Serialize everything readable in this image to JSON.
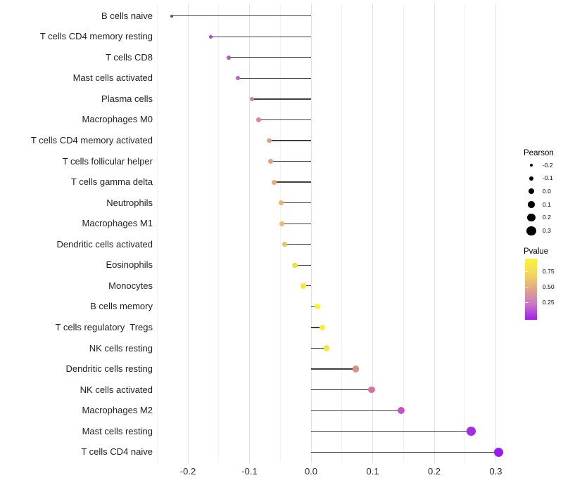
{
  "chart_data": {
    "type": "scatter",
    "subtype": "lollipop",
    "orientation": "horizontal",
    "title": "",
    "xlabel": "",
    "ylabel": "",
    "xlim": [
      -0.252,
      0.332
    ],
    "grid": "vertical major and minor, no axis lines, white background",
    "legend_position": "right",
    "categories": [
      "B cells naive",
      "T cells CD4 memory resting",
      "T cells CD8",
      "Mast cells activated",
      "Plasma cells",
      "Macrophages M0",
      "T cells CD4 memory activated",
      "T cells follicular helper",
      "T cells gamma delta",
      "Neutrophils",
      "Macrophages M1",
      "Dendritic cells activated",
      "Eosinophils",
      "Monocytes",
      "B cells memory",
      "T cells regulatory  Tregs",
      "NK cells resting",
      "Dendritic cells resting",
      "NK cells activated",
      "Macrophages M2",
      "Mast cells resting",
      "T cells CD4 naive"
    ],
    "series": [
      {
        "name": "Pearson correlation",
        "values": [
          -0.226,
          -0.163,
          -0.134,
          -0.119,
          -0.096,
          -0.085,
          -0.068,
          -0.066,
          -0.06,
          -0.049,
          -0.047,
          -0.043,
          -0.026,
          -0.013,
          0.01,
          0.018,
          0.025,
          0.073,
          0.098,
          0.146,
          0.26,
          0.305
        ]
      }
    ],
    "point_colors": [
      "#8A2BBE",
      "#A845CE",
      "#B55ACB",
      "#BF62C8",
      "#D87C9F",
      "#DC8A90",
      "#E39B80",
      "#E5A17A",
      "#E9AB70",
      "#ECB468",
      "#EDB765",
      "#F0C05C",
      "#F5DC41",
      "#F8E83C",
      "#FBF23A",
      "#FAEF3A",
      "#F7E73D",
      "#DE8D86",
      "#D3759E",
      "#C452CE",
      "#A62BE8",
      "#9B1CF0"
    ],
    "x_tick_labels": [
      "-0.2",
      "-0.1",
      "0.0",
      "0.1",
      "0.2",
      "0.3"
    ],
    "x_tick_values": [
      -0.2,
      -0.1,
      0.0,
      0.1,
      0.2,
      0.3
    ],
    "x_minor_grid_values": [
      -0.25,
      -0.15,
      -0.05,
      0.05,
      0.15,
      0.25
    ],
    "size_legend": {
      "title": "Pearson",
      "entries": [
        {
          "label": "-0.2",
          "value": -0.2
        },
        {
          "label": "-0.1",
          "value": -0.1
        },
        {
          "label": "0.0",
          "value": 0.0
        },
        {
          "label": "0.1",
          "value": 0.1
        },
        {
          "label": "0.2",
          "value": 0.2
        },
        {
          "label": "0.3",
          "value": 0.3
        }
      ]
    },
    "color_legend": {
      "title": "Pvalue",
      "tick_labels": [
        "0.75",
        "0.50",
        "0.25"
      ],
      "gradient_stops": [
        "#FCF43B",
        "#F3D75C",
        "#E0A687",
        "#C976C6",
        "#A21BF2"
      ]
    }
  }
}
